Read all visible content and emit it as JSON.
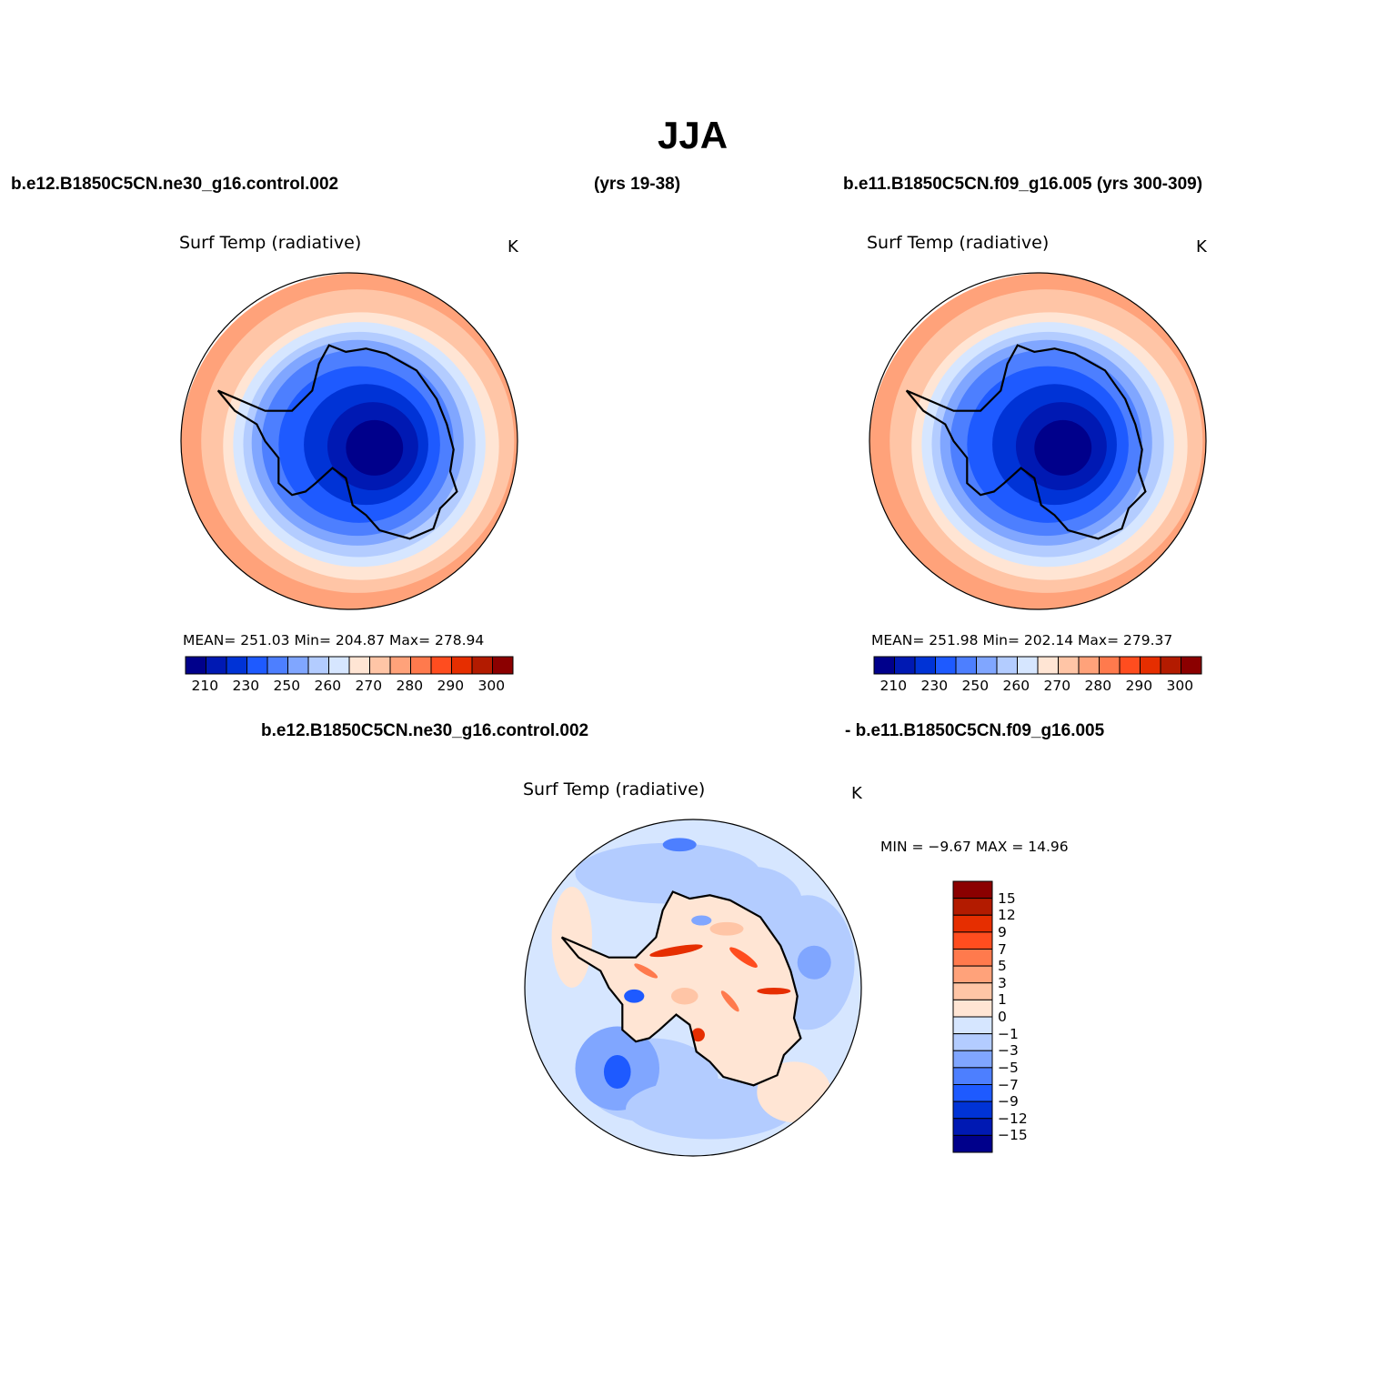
{
  "main_title": "JJA",
  "top_left_case": "b.e12.B1850C5CN.ne30_g16.control.002",
  "top_center_years": "(yrs 19-38)",
  "top_right_case": "b.e11.B1850C5CN.f09_g16.005 (yrs 300-309)",
  "diff_case_a": "b.e12.B1850C5CN.ne30_g16.control.002",
  "diff_case_b": "- b.e11.B1850C5CN.f09_g16.005",
  "colors": {
    "abs_scale": [
      "#00008b",
      "#0019b3",
      "#0033d6",
      "#1e5aff",
      "#4d7fff",
      "#80a6ff",
      "#b3ccff",
      "#d6e6ff",
      "#ffe5d4",
      "#ffc5a6",
      "#ffa27a",
      "#ff7a4d",
      "#ff4d1f",
      "#e62e00",
      "#b31b00",
      "#8b0000"
    ],
    "diff_scale": [
      "#00008b",
      "#0019b3",
      "#0033d6",
      "#1e5aff",
      "#4d7fff",
      "#80a6ff",
      "#b3ccff",
      "#d6e6ff",
      "#ffe5d4",
      "#ffc5a6",
      "#ffa27a",
      "#ff7a4d",
      "#ff4d1f",
      "#e62e00",
      "#b31b00",
      "#8b0000"
    ]
  },
  "panels": [
    {
      "field_title": "Surf Temp (radiative)",
      "units": "K",
      "stats": "MEAN= 251.03   Min= 204.87   Max= 278.94",
      "colorbar_labels": [
        "210",
        "230",
        "250",
        "260",
        "270",
        "280",
        "290",
        "300"
      ]
    },
    {
      "field_title": "Surf Temp (radiative)",
      "units": "K",
      "stats": "MEAN= 251.98   Min= 202.14   Max= 279.37",
      "colorbar_labels": [
        "210",
        "230",
        "250",
        "260",
        "270",
        "280",
        "290",
        "300"
      ]
    },
    {
      "field_title": "Surf Temp (radiative)",
      "units": "K",
      "stats": "MIN =   −9.67  MAX =   14.96",
      "colorbar_labels": [
        "15",
        "12",
        "9",
        "7",
        "5",
        "3",
        "1",
        "0",
        "−1",
        "−3",
        "−5",
        "−7",
        "−9",
        "−12",
        "−15"
      ]
    }
  ],
  "map_data": {
    "projection": "south polar stereographic",
    "field": "surface radiative temperature, JJA mean",
    "panels": [
      {
        "role": "case 1",
        "mean": 251.03,
        "min": 204.87,
        "max": 278.94
      },
      {
        "role": "case 2",
        "mean": 251.98,
        "min": 202.14,
        "max": 279.37
      },
      {
        "role": "difference",
        "min": -9.67,
        "max": 14.96
      }
    ]
  }
}
